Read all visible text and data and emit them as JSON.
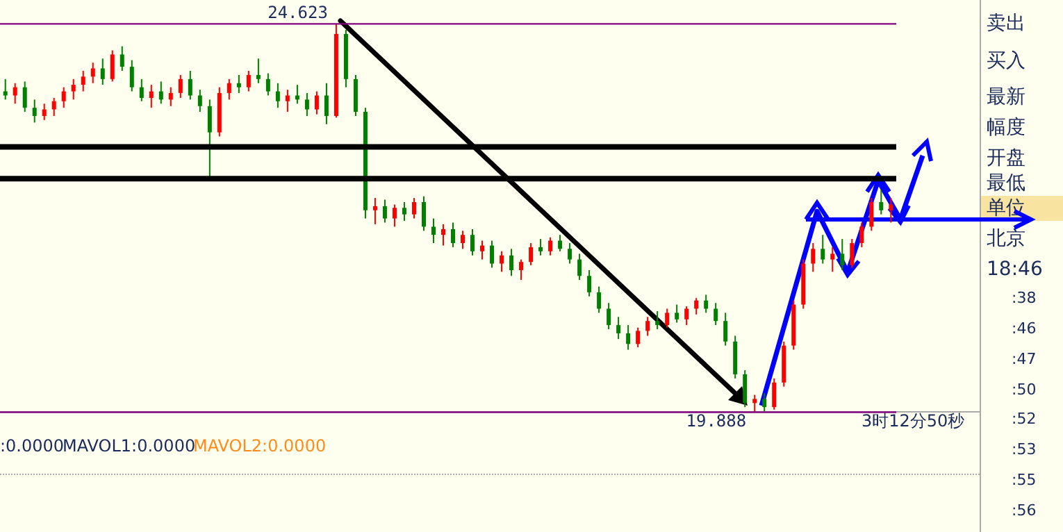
{
  "chart_data": {
    "type": "candlestick",
    "tick_labels": false,
    "categories": [
      null,
      null,
      null,
      null,
      null,
      null,
      null,
      null,
      null,
      null,
      null,
      null,
      null,
      null,
      null,
      null,
      null,
      null,
      null,
      null,
      null,
      null,
      null,
      null,
      null,
      null,
      null,
      null,
      null,
      null,
      null,
      null,
      null,
      null,
      null,
      null,
      null,
      null,
      null,
      null,
      null,
      null,
      null,
      null,
      null,
      null,
      null,
      null,
      null,
      null,
      null,
      null,
      null,
      null,
      null,
      null,
      null,
      null,
      null,
      null,
      null,
      null,
      null,
      null,
      null,
      null,
      null,
      null,
      null,
      null,
      null,
      null,
      null,
      null,
      null,
      null,
      null,
      null,
      null,
      null,
      null,
      null,
      null,
      null,
      null,
      null,
      null,
      null,
      null,
      null,
      null,
      null
    ],
    "ylim": [
      19.85,
      24.66
    ],
    "ohlc": [
      [
        23.8,
        23.95,
        23.7,
        23.75
      ],
      [
        23.75,
        23.9,
        23.65,
        23.85
      ],
      [
        23.85,
        23.92,
        23.55,
        23.6
      ],
      [
        23.6,
        23.7,
        23.42,
        23.5
      ],
      [
        23.5,
        23.65,
        23.45,
        23.58
      ],
      [
        23.58,
        23.72,
        23.5,
        23.68
      ],
      [
        23.68,
        23.85,
        23.6,
        23.8
      ],
      [
        23.8,
        23.95,
        23.7,
        23.88
      ],
      [
        23.88,
        24.05,
        23.8,
        23.98
      ],
      [
        23.98,
        24.15,
        23.9,
        24.08
      ],
      [
        24.08,
        24.2,
        23.88,
        23.95
      ],
      [
        23.95,
        24.3,
        23.92,
        24.25
      ],
      [
        24.25,
        24.35,
        24.05,
        24.1
      ],
      [
        24.1,
        24.18,
        23.8,
        23.85
      ],
      [
        23.85,
        23.95,
        23.68,
        23.72
      ],
      [
        23.72,
        23.88,
        23.6,
        23.8
      ],
      [
        23.8,
        23.92,
        23.65,
        23.7
      ],
      [
        23.7,
        23.85,
        23.62,
        23.78
      ],
      [
        23.78,
        24.0,
        23.72,
        23.95
      ],
      [
        23.95,
        24.05,
        23.7,
        23.75
      ],
      [
        23.75,
        23.82,
        23.55,
        23.62
      ],
      [
        23.62,
        23.7,
        22.76,
        23.3
      ],
      [
        23.3,
        23.85,
        23.25,
        23.78
      ],
      [
        23.78,
        23.95,
        23.7,
        23.9
      ],
      [
        23.9,
        24.0,
        23.78,
        23.85
      ],
      [
        23.85,
        24.05,
        23.8,
        24.0
      ],
      [
        24.0,
        24.2,
        23.9,
        23.95
      ],
      [
        23.95,
        24.02,
        23.75,
        23.8
      ],
      [
        23.8,
        23.9,
        23.6,
        23.68
      ],
      [
        23.68,
        23.82,
        23.55,
        23.75
      ],
      [
        23.75,
        23.88,
        23.65,
        23.7
      ],
      [
        23.7,
        23.78,
        23.5,
        23.58
      ],
      [
        23.58,
        23.8,
        23.52,
        23.75
      ],
      [
        23.75,
        23.9,
        23.4,
        23.5
      ],
      [
        23.5,
        24.623,
        23.48,
        24.5
      ],
      [
        24.5,
        24.55,
        23.85,
        23.95
      ],
      [
        23.95,
        24.0,
        23.5,
        23.55
      ],
      [
        23.55,
        23.6,
        22.25,
        22.35
      ],
      [
        22.35,
        22.5,
        22.18,
        22.4
      ],
      [
        22.4,
        22.48,
        22.2,
        22.25
      ],
      [
        22.25,
        22.42,
        22.15,
        22.38
      ],
      [
        22.38,
        22.45,
        22.22,
        22.3
      ],
      [
        22.3,
        22.5,
        22.25,
        22.45
      ],
      [
        22.45,
        22.52,
        22.1,
        22.15
      ],
      [
        22.15,
        22.25,
        21.95,
        22.05
      ],
      [
        22.05,
        22.18,
        21.92,
        22.12
      ],
      [
        22.12,
        22.2,
        21.9,
        21.95
      ],
      [
        21.95,
        22.1,
        21.88,
        22.05
      ],
      [
        22.05,
        22.12,
        21.8,
        21.85
      ],
      [
        21.85,
        21.98,
        21.75,
        21.92
      ],
      [
        21.92,
        21.98,
        21.65,
        21.7
      ],
      [
        21.7,
        21.85,
        21.6,
        21.8
      ],
      [
        21.8,
        21.88,
        21.55,
        21.62
      ],
      [
        21.62,
        21.75,
        21.5,
        21.72
      ],
      [
        21.72,
        21.95,
        21.68,
        21.9
      ],
      [
        21.9,
        22.0,
        21.8,
        21.85
      ],
      [
        21.85,
        22.02,
        21.8,
        21.98
      ],
      [
        21.98,
        22.05,
        21.85,
        21.88
      ],
      [
        21.88,
        21.95,
        21.7,
        21.75
      ],
      [
        21.75,
        21.82,
        21.5,
        21.55
      ],
      [
        21.55,
        21.62,
        21.3,
        21.35
      ],
      [
        21.35,
        21.42,
        21.1,
        21.15
      ],
      [
        21.15,
        21.22,
        20.9,
        20.95
      ],
      [
        20.95,
        21.05,
        20.78,
        20.85
      ],
      [
        20.85,
        20.95,
        20.65,
        20.72
      ],
      [
        20.72,
        20.92,
        20.68,
        20.88
      ],
      [
        20.88,
        21.05,
        20.82,
        21.0
      ],
      [
        21.0,
        21.12,
        20.9,
        20.95
      ],
      [
        20.95,
        21.15,
        20.92,
        21.1
      ],
      [
        21.1,
        21.2,
        20.98,
        21.02
      ],
      [
        21.02,
        21.18,
        20.95,
        21.15
      ],
      [
        21.15,
        21.28,
        21.08,
        21.25
      ],
      [
        21.25,
        21.32,
        21.1,
        21.15
      ],
      [
        21.15,
        21.22,
        20.95,
        21.0
      ],
      [
        21.0,
        21.1,
        20.7,
        20.75
      ],
      [
        20.75,
        20.82,
        20.3,
        20.35
      ],
      [
        20.35,
        20.4,
        19.95,
        20.0
      ],
      [
        20.0,
        20.1,
        19.888,
        20.05
      ],
      [
        20.05,
        20.12,
        19.9,
        19.95
      ],
      [
        19.95,
        20.3,
        19.92,
        20.25
      ],
      [
        20.25,
        20.75,
        20.2,
        20.7
      ],
      [
        20.7,
        21.25,
        20.65,
        21.2
      ],
      [
        21.2,
        21.75,
        21.15,
        21.7
      ],
      [
        21.7,
        21.95,
        21.6,
        21.88
      ],
      [
        21.88,
        22.05,
        21.7,
        21.75
      ],
      [
        21.75,
        21.9,
        21.6,
        21.82
      ],
      [
        21.82,
        22.0,
        21.62,
        21.68
      ],
      [
        21.68,
        22.0,
        21.65,
        21.95
      ],
      [
        21.95,
        22.2,
        21.9,
        22.15
      ],
      [
        22.15,
        22.5,
        22.1,
        22.45
      ],
      [
        22.45,
        22.6,
        22.3,
        22.35
      ],
      [
        22.35,
        22.5,
        22.2,
        22.42
      ]
    ],
    "colors": [
      "#008000",
      "#ff0000",
      "#008000",
      "#008000",
      "#ff0000",
      "#ff0000",
      "#ff0000",
      "#ff0000",
      "#ff0000",
      "#ff0000",
      "#008000",
      "#ff0000",
      "#008000",
      "#008000",
      "#008000",
      "#ff0000",
      "#008000",
      "#ff0000",
      "#ff0000",
      "#008000",
      "#008000",
      "#008000",
      "#ff0000",
      "#ff0000",
      "#008000",
      "#ff0000",
      "#008000",
      "#008000",
      "#008000",
      "#ff0000",
      "#008000",
      "#008000",
      "#ff0000",
      "#008000",
      "#ff0000",
      "#008000",
      "#008000",
      "#008000",
      "#ff0000",
      "#008000",
      "#ff0000",
      "#008000",
      "#ff0000",
      "#008000",
      "#008000",
      "#ff0000",
      "#008000",
      "#ff0000",
      "#008000",
      "#ff0000",
      "#008000",
      "#ff0000",
      "#008000",
      "#ff0000",
      "#ff0000",
      "#008000",
      "#ff0000",
      "#008000",
      "#008000",
      "#008000",
      "#008000",
      "#008000",
      "#008000",
      "#008000",
      "#008000",
      "#ff0000",
      "#ff0000",
      "#008000",
      "#ff0000",
      "#008000",
      "#ff0000",
      "#ff0000",
      "#008000",
      "#008000",
      "#008000",
      "#008000",
      "#008000",
      "#ff0000",
      "#008000",
      "#ff0000",
      "#ff0000",
      "#ff0000",
      "#ff0000",
      "#ff0000",
      "#008000",
      "#ff0000",
      "#008000",
      "#ff0000",
      "#ff0000",
      "#ff0000",
      "#008000",
      "#ff0000"
    ],
    "ref_lines": [
      {
        "axis": "y",
        "value": 24.623,
        "color": "#800080"
      },
      {
        "axis": "y",
        "value": 19.888,
        "color": "#800080"
      },
      {
        "axis": "y",
        "value": 23.123,
        "color": "#000000"
      },
      {
        "axis": "y",
        "value": 22.736,
        "color": "#000000"
      }
    ],
    "annotations": [
      {
        "text": "24.623",
        "y": 24.623
      },
      {
        "text": "19.888",
        "y": 19.888
      },
      "3时12分50秒",
      ":0.0000",
      "MAVOL1:0.0000",
      "MAVOL2:0.0000",
      "卖出",
      "买入",
      "最新",
      "幅度",
      "开盘",
      "最低",
      "单位",
      "北京",
      "18:46",
      ":38",
      ":46",
      ":47",
      ":50",
      ":52",
      ":53",
      ":55",
      ":56"
    ]
  }
}
